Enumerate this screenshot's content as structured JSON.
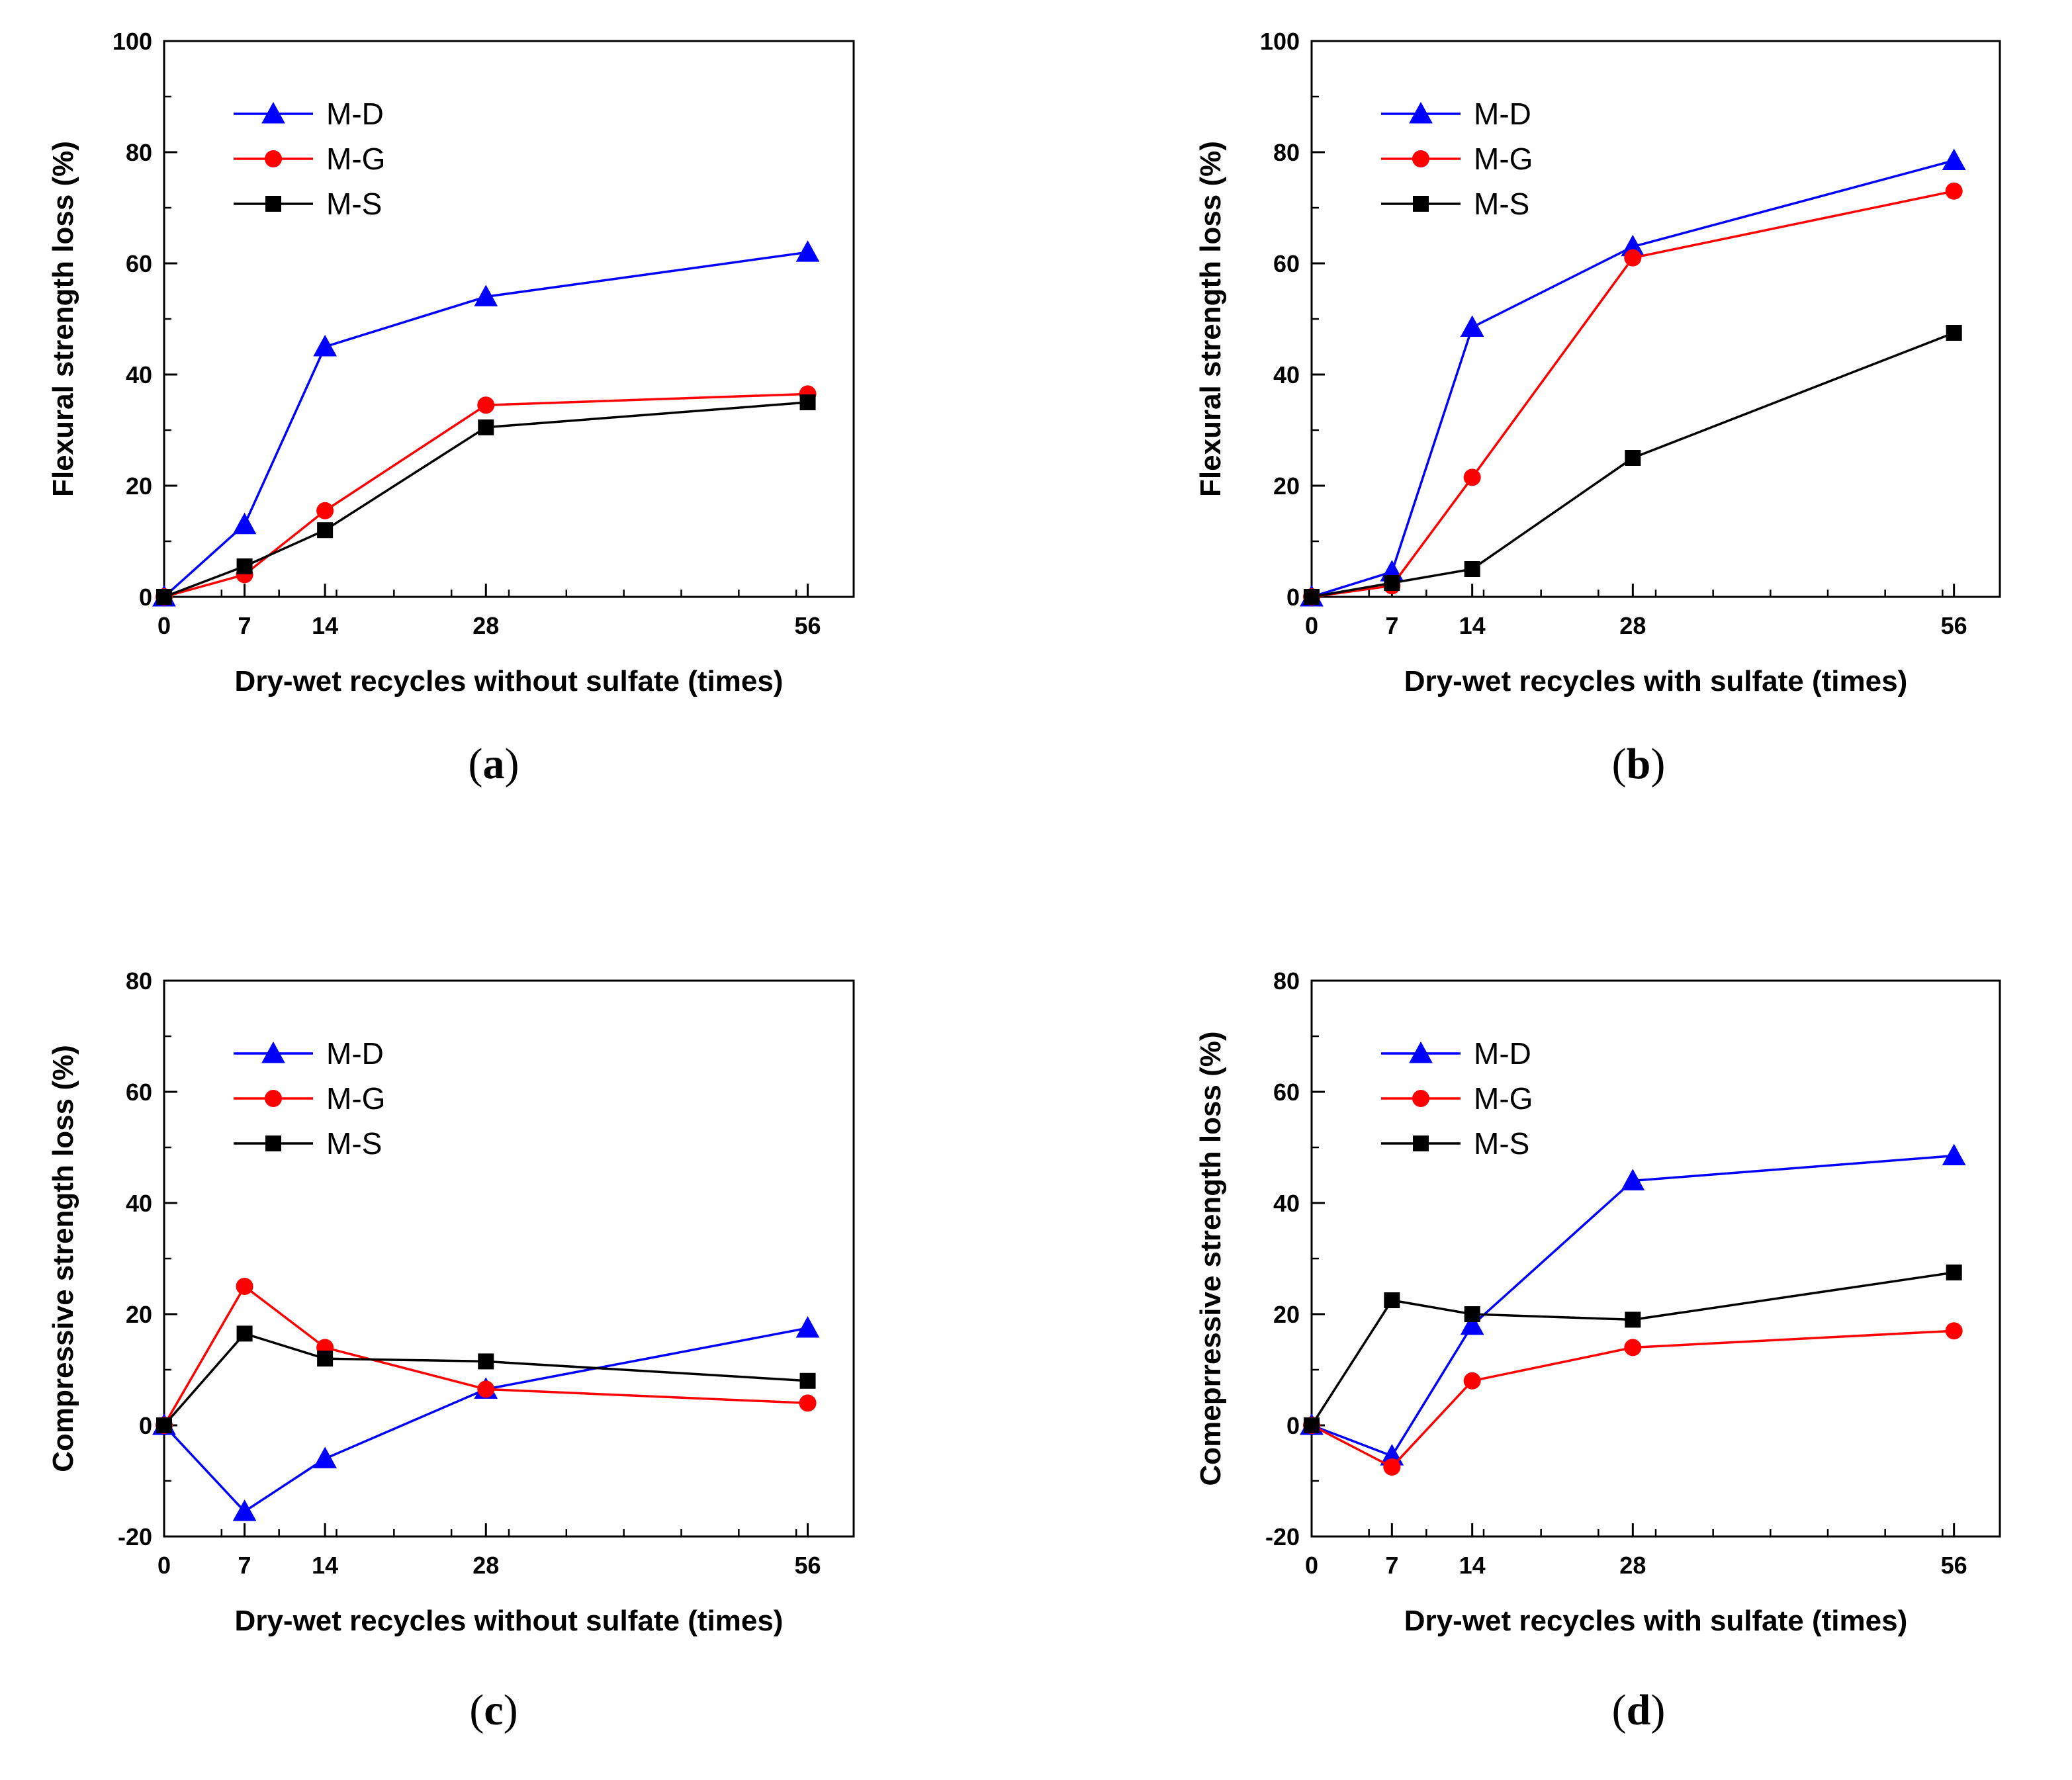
{
  "colors": {
    "M-D": "#0000ff",
    "M-G": "#ff0000",
    "M-S": "#000000"
  },
  "chart_data": [
    {
      "type": "line",
      "panel": "a",
      "xlabel": "Dry-wet recycles without sulfate (times)",
      "ylabel": "Flexural strength loss (%)",
      "xlim": [
        0,
        60
      ],
      "ylim": [
        0,
        100
      ],
      "xticks": [
        0,
        7,
        14,
        28,
        56
      ],
      "yticks": [
        0,
        20,
        40,
        60,
        80,
        100
      ],
      "x": [
        0,
        7,
        14,
        28,
        56
      ],
      "legend_position": "top-left",
      "series": [
        {
          "name": "M-D",
          "marker": "triangle",
          "values": [
            0,
            13,
            45,
            54,
            62
          ]
        },
        {
          "name": "M-G",
          "marker": "circle",
          "values": [
            0,
            4,
            15.5,
            34.5,
            36.5
          ]
        },
        {
          "name": "M-S",
          "marker": "square",
          "values": [
            0,
            5.5,
            12,
            30.5,
            35
          ]
        }
      ]
    },
    {
      "type": "line",
      "panel": "b",
      "xlabel": "Dry-wet recycles with sulfate (times)",
      "ylabel": "Flexural strength loss (%)",
      "xlim": [
        0,
        60
      ],
      "ylim": [
        0,
        100
      ],
      "xticks": [
        0,
        7,
        14,
        28,
        56
      ],
      "yticks": [
        0,
        20,
        40,
        60,
        80,
        100
      ],
      "x": [
        0,
        7,
        14,
        28,
        56
      ],
      "legend_position": "top-left",
      "series": [
        {
          "name": "M-D",
          "marker": "triangle",
          "values": [
            0,
            4.5,
            48.5,
            63,
            78.5
          ]
        },
        {
          "name": "M-G",
          "marker": "circle",
          "values": [
            0,
            2,
            21.5,
            61,
            73
          ]
        },
        {
          "name": "M-S",
          "marker": "square",
          "values": [
            0,
            2.5,
            5,
            25,
            47.5
          ]
        }
      ]
    },
    {
      "type": "line",
      "panel": "c",
      "xlabel": "Dry-wet recycles without sulfate (times)",
      "ylabel": "Compressive strength loss (%)",
      "xlim": [
        0,
        60
      ],
      "ylim": [
        -20,
        80
      ],
      "xticks": [
        0,
        7,
        14,
        28,
        56
      ],
      "yticks": [
        -20,
        0,
        20,
        40,
        60,
        80
      ],
      "x": [
        0,
        7,
        14,
        28,
        56
      ],
      "legend_position": "top-left",
      "series": [
        {
          "name": "M-D",
          "marker": "triangle",
          "values": [
            0,
            -15.5,
            -6,
            6.5,
            17.5
          ]
        },
        {
          "name": "M-G",
          "marker": "circle",
          "values": [
            0,
            25,
            14,
            6.5,
            4
          ]
        },
        {
          "name": "M-S",
          "marker": "square",
          "values": [
            0,
            16.5,
            12,
            11.5,
            8
          ]
        }
      ]
    },
    {
      "type": "line",
      "panel": "d",
      "xlabel": "Dry-wet recycles with sulfate (times)",
      "ylabel": "Comeprressive strength loss (%)",
      "xlim": [
        0,
        60
      ],
      "ylim": [
        -20,
        80
      ],
      "xticks": [
        0,
        7,
        14,
        28,
        56
      ],
      "yticks": [
        -20,
        0,
        20,
        40,
        60,
        80
      ],
      "x": [
        0,
        7,
        14,
        28,
        56
      ],
      "legend_position": "top-left",
      "series": [
        {
          "name": "M-D",
          "marker": "triangle",
          "values": [
            0,
            -5.5,
            18,
            44,
            48.5
          ]
        },
        {
          "name": "M-G",
          "marker": "circle",
          "values": [
            0,
            -7.5,
            8,
            14,
            17
          ]
        },
        {
          "name": "M-S",
          "marker": "square",
          "values": [
            0,
            22.5,
            20,
            19,
            27.5
          ]
        }
      ]
    }
  ]
}
